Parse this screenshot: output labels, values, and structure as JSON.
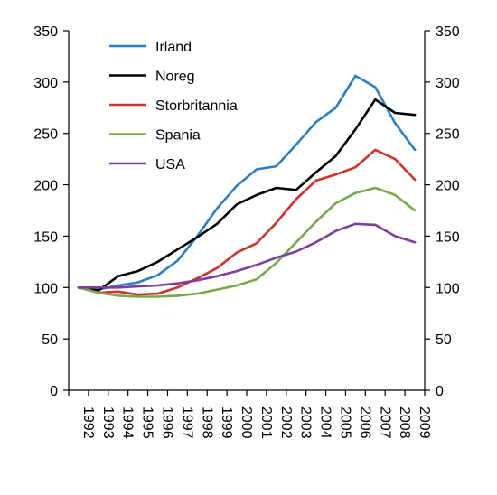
{
  "chart_data": {
    "type": "line",
    "title": "",
    "xlabel": "",
    "ylabel": "",
    "x": [
      "1992",
      "1993",
      "1994",
      "1995",
      "1996",
      "1997",
      "1998",
      "1999",
      "2000",
      "2001",
      "2002",
      "2003",
      "2004",
      "2005",
      "2006",
      "2007",
      "2008",
      "2009"
    ],
    "ylim": [
      0,
      350
    ],
    "yticks": [
      0,
      50,
      100,
      150,
      200,
      250,
      300,
      350
    ],
    "y_axis_right": true,
    "grid": false,
    "legend_position": "top-left",
    "series": [
      {
        "name": "Irland",
        "color": "#2a7fc4",
        "values": [
          100,
          98,
          102,
          105,
          112,
          126,
          150,
          177,
          199,
          215,
          218,
          239,
          261,
          275,
          306,
          295,
          260,
          234
        ]
      },
      {
        "name": "Noreg",
        "color": "#000000",
        "values": [
          100,
          97,
          111,
          116,
          125,
          137,
          149,
          162,
          181,
          190,
          197,
          195,
          212,
          228,
          254,
          283,
          270,
          268
        ]
      },
      {
        "name": "Storbritannia",
        "color": "#d1312b",
        "values": [
          100,
          95,
          96,
          93,
          94,
          100,
          109,
          119,
          134,
          143,
          163,
          186,
          204,
          210,
          217,
          234,
          225,
          205
        ]
      },
      {
        "name": "Spania",
        "color": "#77a84a",
        "values": [
          100,
          95,
          92,
          91,
          91,
          92,
          94,
          98,
          102,
          108,
          124,
          144,
          164,
          182,
          192,
          197,
          190,
          175
        ]
      },
      {
        "name": "USA",
        "color": "#7b3f9c",
        "values": [
          100,
          100,
          100,
          101,
          102,
          104,
          107,
          111,
          116,
          122,
          129,
          135,
          144,
          155,
          162,
          161,
          150,
          144
        ]
      }
    ]
  }
}
